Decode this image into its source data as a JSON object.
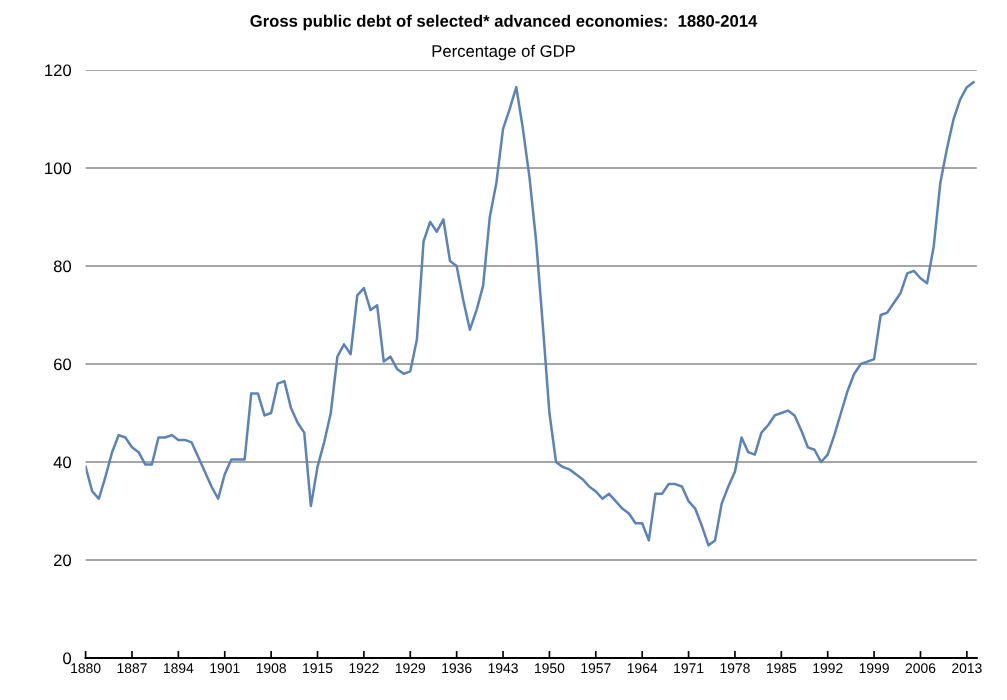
{
  "chart_data": {
    "type": "line",
    "title": "Gross public debt of selected* advanced economies:  1880-2014",
    "subtitle": "Percentage of GDP",
    "x": [
      1880,
      1881,
      1882,
      1883,
      1884,
      1885,
      1886,
      1887,
      1888,
      1889,
      1890,
      1891,
      1892,
      1893,
      1894,
      1895,
      1896,
      1897,
      1898,
      1899,
      1900,
      1901,
      1902,
      1903,
      1904,
      1905,
      1906,
      1907,
      1908,
      1909,
      1910,
      1911,
      1912,
      1913,
      1914,
      1915,
      1916,
      1917,
      1918,
      1919,
      1920,
      1921,
      1922,
      1923,
      1924,
      1925,
      1926,
      1927,
      1928,
      1929,
      1930,
      1931,
      1932,
      1933,
      1934,
      1935,
      1936,
      1937,
      1938,
      1939,
      1940,
      1941,
      1942,
      1943,
      1944,
      1945,
      1946,
      1947,
      1948,
      1949,
      1950,
      1951,
      1952,
      1953,
      1954,
      1955,
      1956,
      1957,
      1958,
      1959,
      1960,
      1961,
      1962,
      1963,
      1964,
      1965,
      1966,
      1967,
      1968,
      1969,
      1970,
      1971,
      1972,
      1973,
      1974,
      1975,
      1976,
      1977,
      1978,
      1979,
      1980,
      1981,
      1982,
      1983,
      1984,
      1985,
      1986,
      1987,
      1988,
      1989,
      1990,
      1991,
      1992,
      1993,
      1994,
      1995,
      1996,
      1997,
      1998,
      1999,
      2000,
      2001,
      2002,
      2003,
      2004,
      2005,
      2006,
      2007,
      2008,
      2009,
      2010,
      2011,
      2012,
      2013,
      2014
    ],
    "series": [
      {
        "color": "#5b83b8",
        "values": [
          39,
          34,
          32.5,
          37,
          42,
          45.5,
          45,
          43,
          42,
          39.5,
          39.5,
          45,
          45,
          45.5,
          44.5,
          44.5,
          44,
          41,
          38,
          35,
          32.5,
          37.5,
          40.5,
          40.5,
          40.5,
          54,
          54,
          49.5,
          50,
          56,
          56.5,
          51,
          48,
          46,
          31,
          39,
          44,
          50,
          61.5,
          64,
          62,
          74,
          75.5,
          71,
          72,
          60.5,
          61.5,
          59,
          58,
          58.5,
          65,
          85,
          89,
          87,
          89.5,
          81,
          80,
          73,
          67,
          71,
          76,
          90,
          97,
          108,
          112,
          116.5,
          108,
          98,
          85,
          68,
          50,
          40,
          39,
          38.5,
          37.5,
          36.5,
          35,
          34,
          32.5,
          33.5,
          32,
          30.5,
          29.5,
          27.5,
          27.5,
          24,
          33.5,
          33.5,
          35.5,
          35.5,
          35,
          32,
          30.5,
          27,
          23,
          24,
          31.5,
          35,
          38,
          45,
          42,
          41.5,
          46,
          47.5,
          49.5,
          50,
          50.5,
          49.5,
          46.5,
          43,
          42.5,
          40,
          41.5,
          45.5,
          50,
          54.5,
          58,
          60,
          60.5,
          61,
          70,
          70.5,
          72.5,
          74.5,
          78.5,
          79,
          77.5,
          76.5,
          84,
          97,
          104,
          110,
          114,
          116.5,
          117.5
        ]
      }
    ],
    "xlim": [
      1880,
      2014.5
    ],
    "xticks": [
      1880,
      1887,
      1894,
      1901,
      1908,
      1915,
      1922,
      1929,
      1936,
      1943,
      1950,
      1957,
      1964,
      1971,
      1978,
      1985,
      1992,
      1999,
      2006,
      2013
    ],
    "ylim": [
      0,
      120
    ],
    "yticks": [
      0,
      20,
      40,
      60,
      80,
      100,
      120
    ],
    "grid": "y",
    "line_style": "solid",
    "marker": "none"
  }
}
